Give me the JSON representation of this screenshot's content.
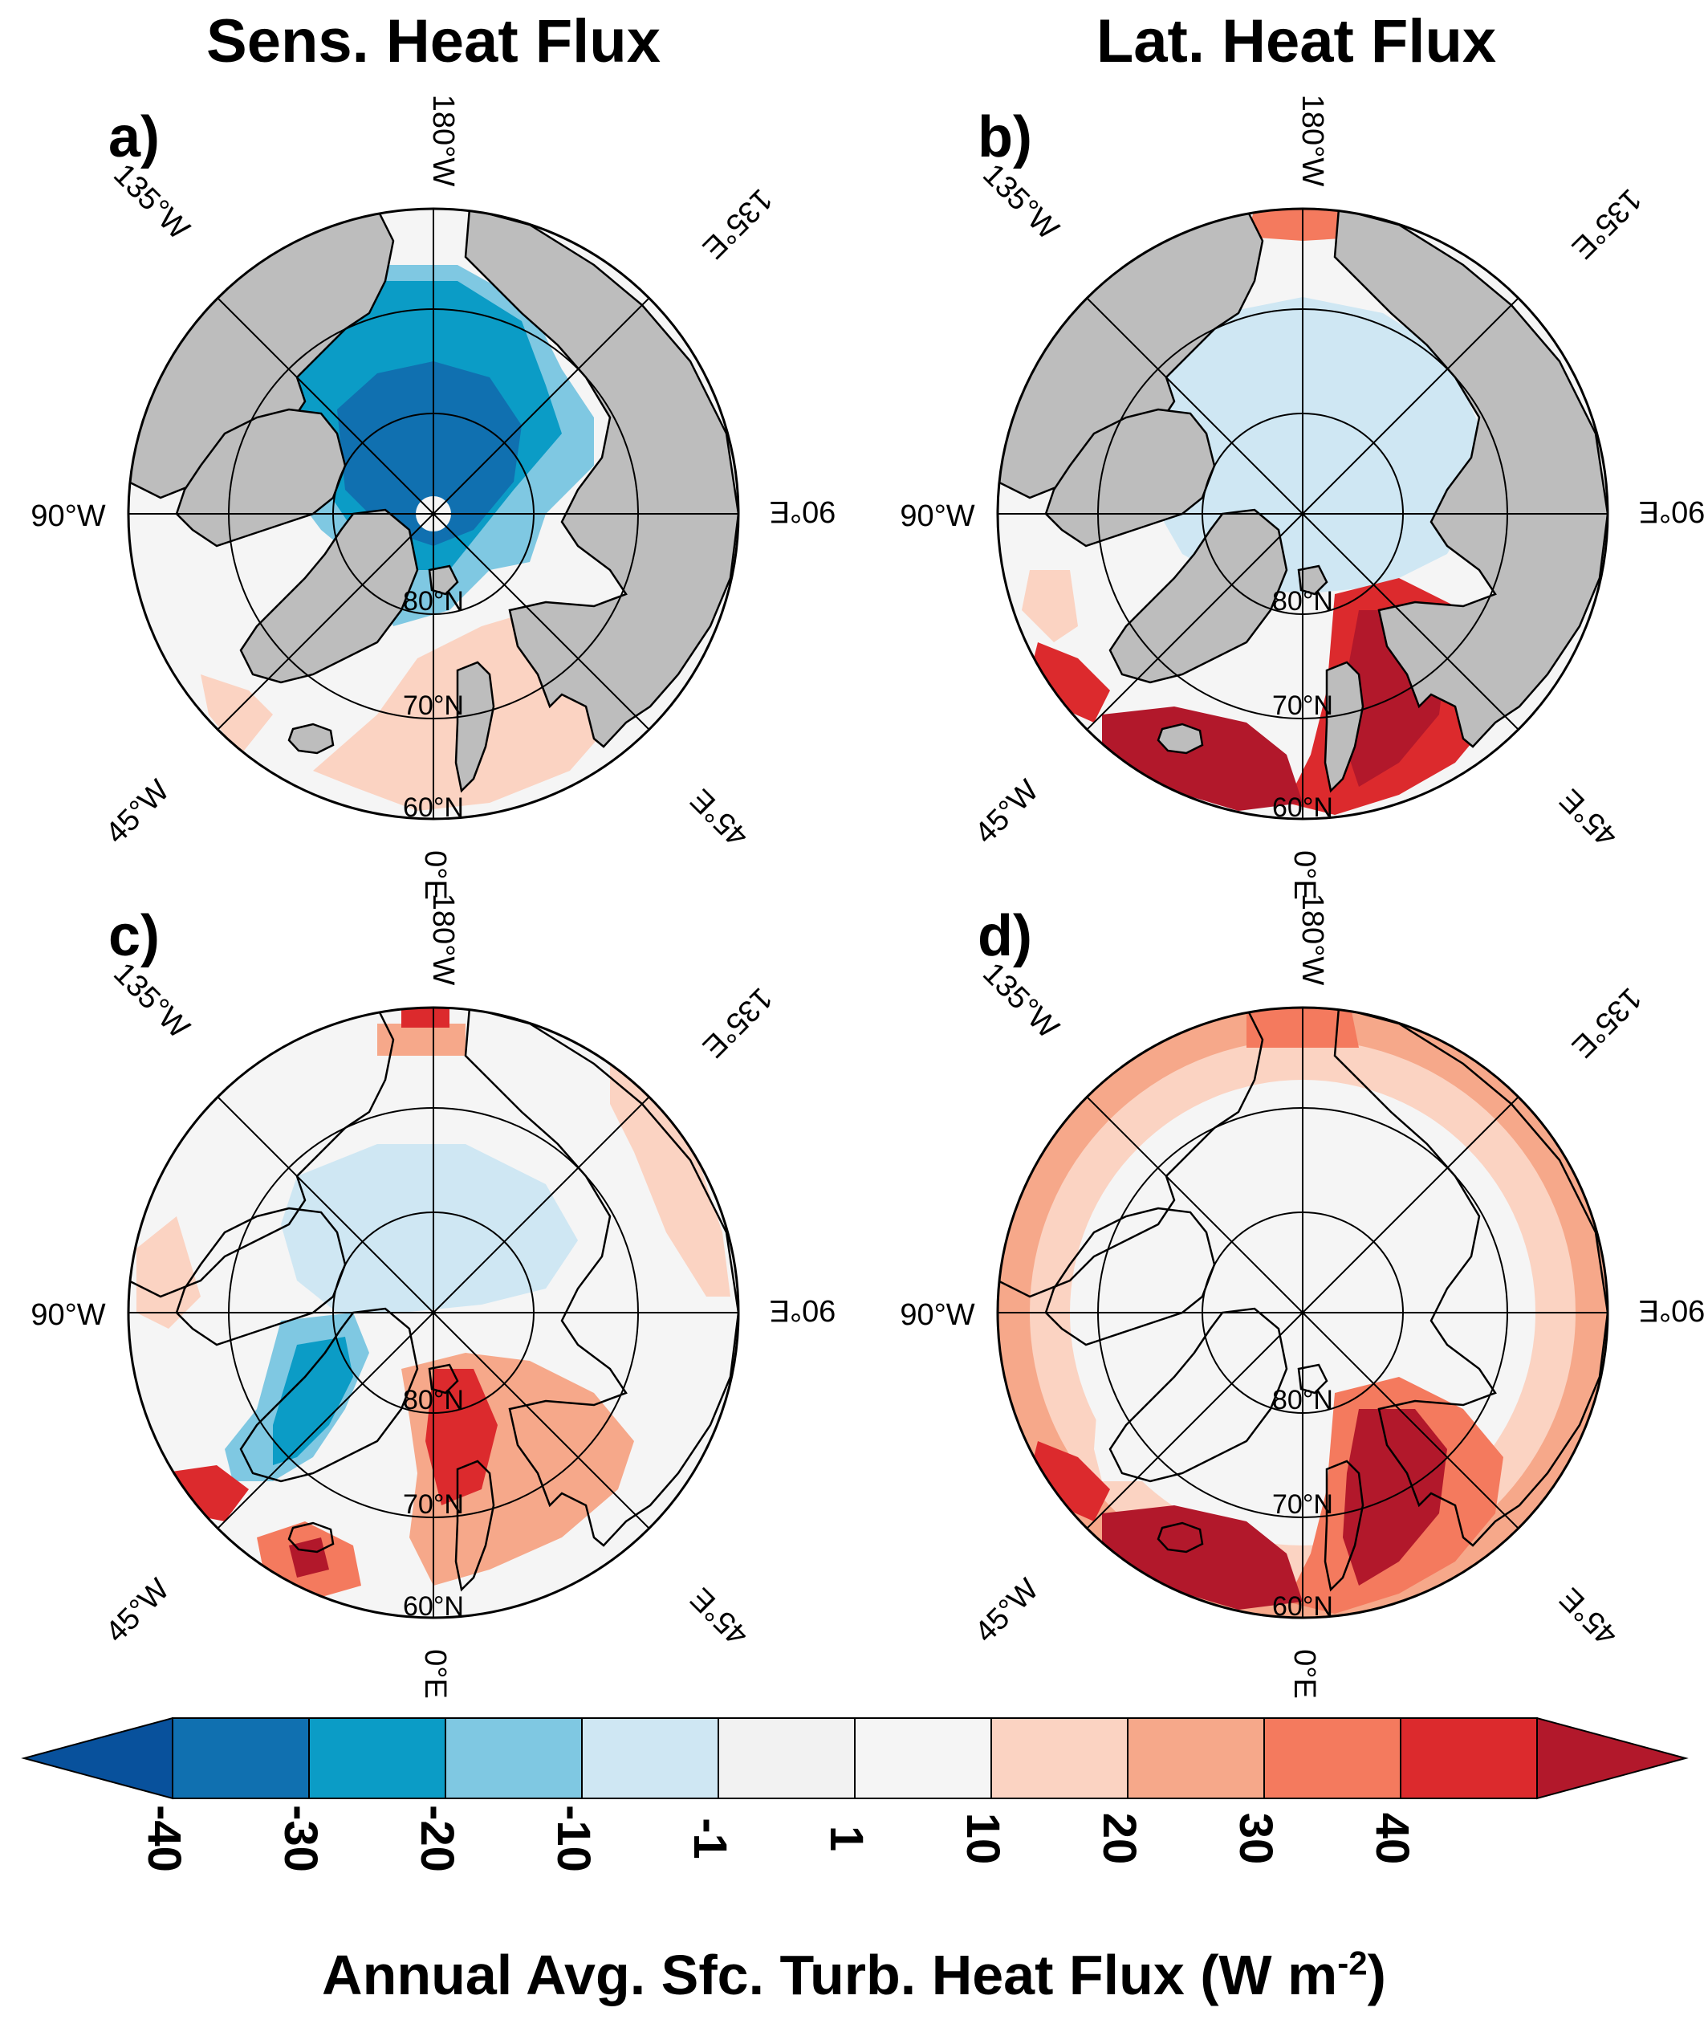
{
  "column_titles": {
    "left": "Sens. Heat Flux",
    "right": "Lat. Heat Flux"
  },
  "panels": [
    {
      "letter": "a)",
      "id": "a",
      "variable": "sensible",
      "map": "panel-a"
    },
    {
      "letter": "b)",
      "id": "b",
      "variable": "latent",
      "map": "panel-b"
    },
    {
      "letter": "c)",
      "id": "c",
      "variable": "sensible",
      "map": "panel-c"
    },
    {
      "letter": "d)",
      "id": "d",
      "variable": "latent",
      "map": "panel-d"
    }
  ],
  "map_labels": {
    "lon_180": "180°W",
    "lon_135w": "135°W",
    "lon_135e": "135°E",
    "lon_90w": "90°W",
    "lon_90e": "90°E",
    "lon_45w": "45°W",
    "lon_45e": "45°E",
    "lon_0": "0°E",
    "lat_80": "80°N",
    "lat_70": "70°N",
    "lat_60": "60°N"
  },
  "colorbar": {
    "title": "Annual Avg. Sfc. Turb. Heat Flux (W m",
    "title_sup": "-2",
    "title_close": ")",
    "ticks": [
      "-40",
      "-30",
      "-20",
      "-10",
      "-1",
      "1",
      "10",
      "20",
      "30",
      "40"
    ],
    "colors": [
      "#08519c",
      "#1070b0",
      "#0b9cc6",
      "#7fc8e2",
      "#cfe7f3",
      "#f2f2f2",
      "#f5f5f5",
      "#fbd3c2",
      "#f6a88a",
      "#f47a5e",
      "#dc2a2d",
      "#b2182b"
    ],
    "land_color": "#bdbdbd"
  },
  "chart_data": {
    "type": "heatmap",
    "title": "",
    "colorbar_label": "Annual Avg. Sfc. Turb. Heat Flux (W m-2)",
    "levels": [
      -40,
      -30,
      -20,
      -10,
      -1,
      1,
      10,
      20,
      30,
      40
    ],
    "projection": "north polar stereographic",
    "latitude_circles": [
      80,
      70,
      60
    ],
    "longitude_lines": [
      0,
      45,
      90,
      135,
      180,
      -45,
      -90,
      -135
    ],
    "panels": [
      {
        "label": "a",
        "field": "Sensible heat flux",
        "summary": "Strong negative (-30 to -40) over central Arctic Ocean; land masked gray; weak positive (1-20) over Nordic Seas"
      },
      {
        "label": "b",
        "field": "Latent heat flux",
        "summary": "Weak negative (-1 to -10) over central Arctic; strong positive (30-40+) over Nordic Seas and North Atlantic; land masked gray"
      },
      {
        "label": "c",
        "field": "Sensible heat flux",
        "summary": "Mostly near-zero; negative (-10 to -20) over Greenland; positive (20-40) over Nordic Seas and Labrador Sea"
      },
      {
        "label": "d",
        "field": "Latent heat flux",
        "summary": "Near-zero over Arctic Ocean; positive ring (10-30) over continents; strong positive (30-40+) over Nordic Seas"
      }
    ]
  }
}
